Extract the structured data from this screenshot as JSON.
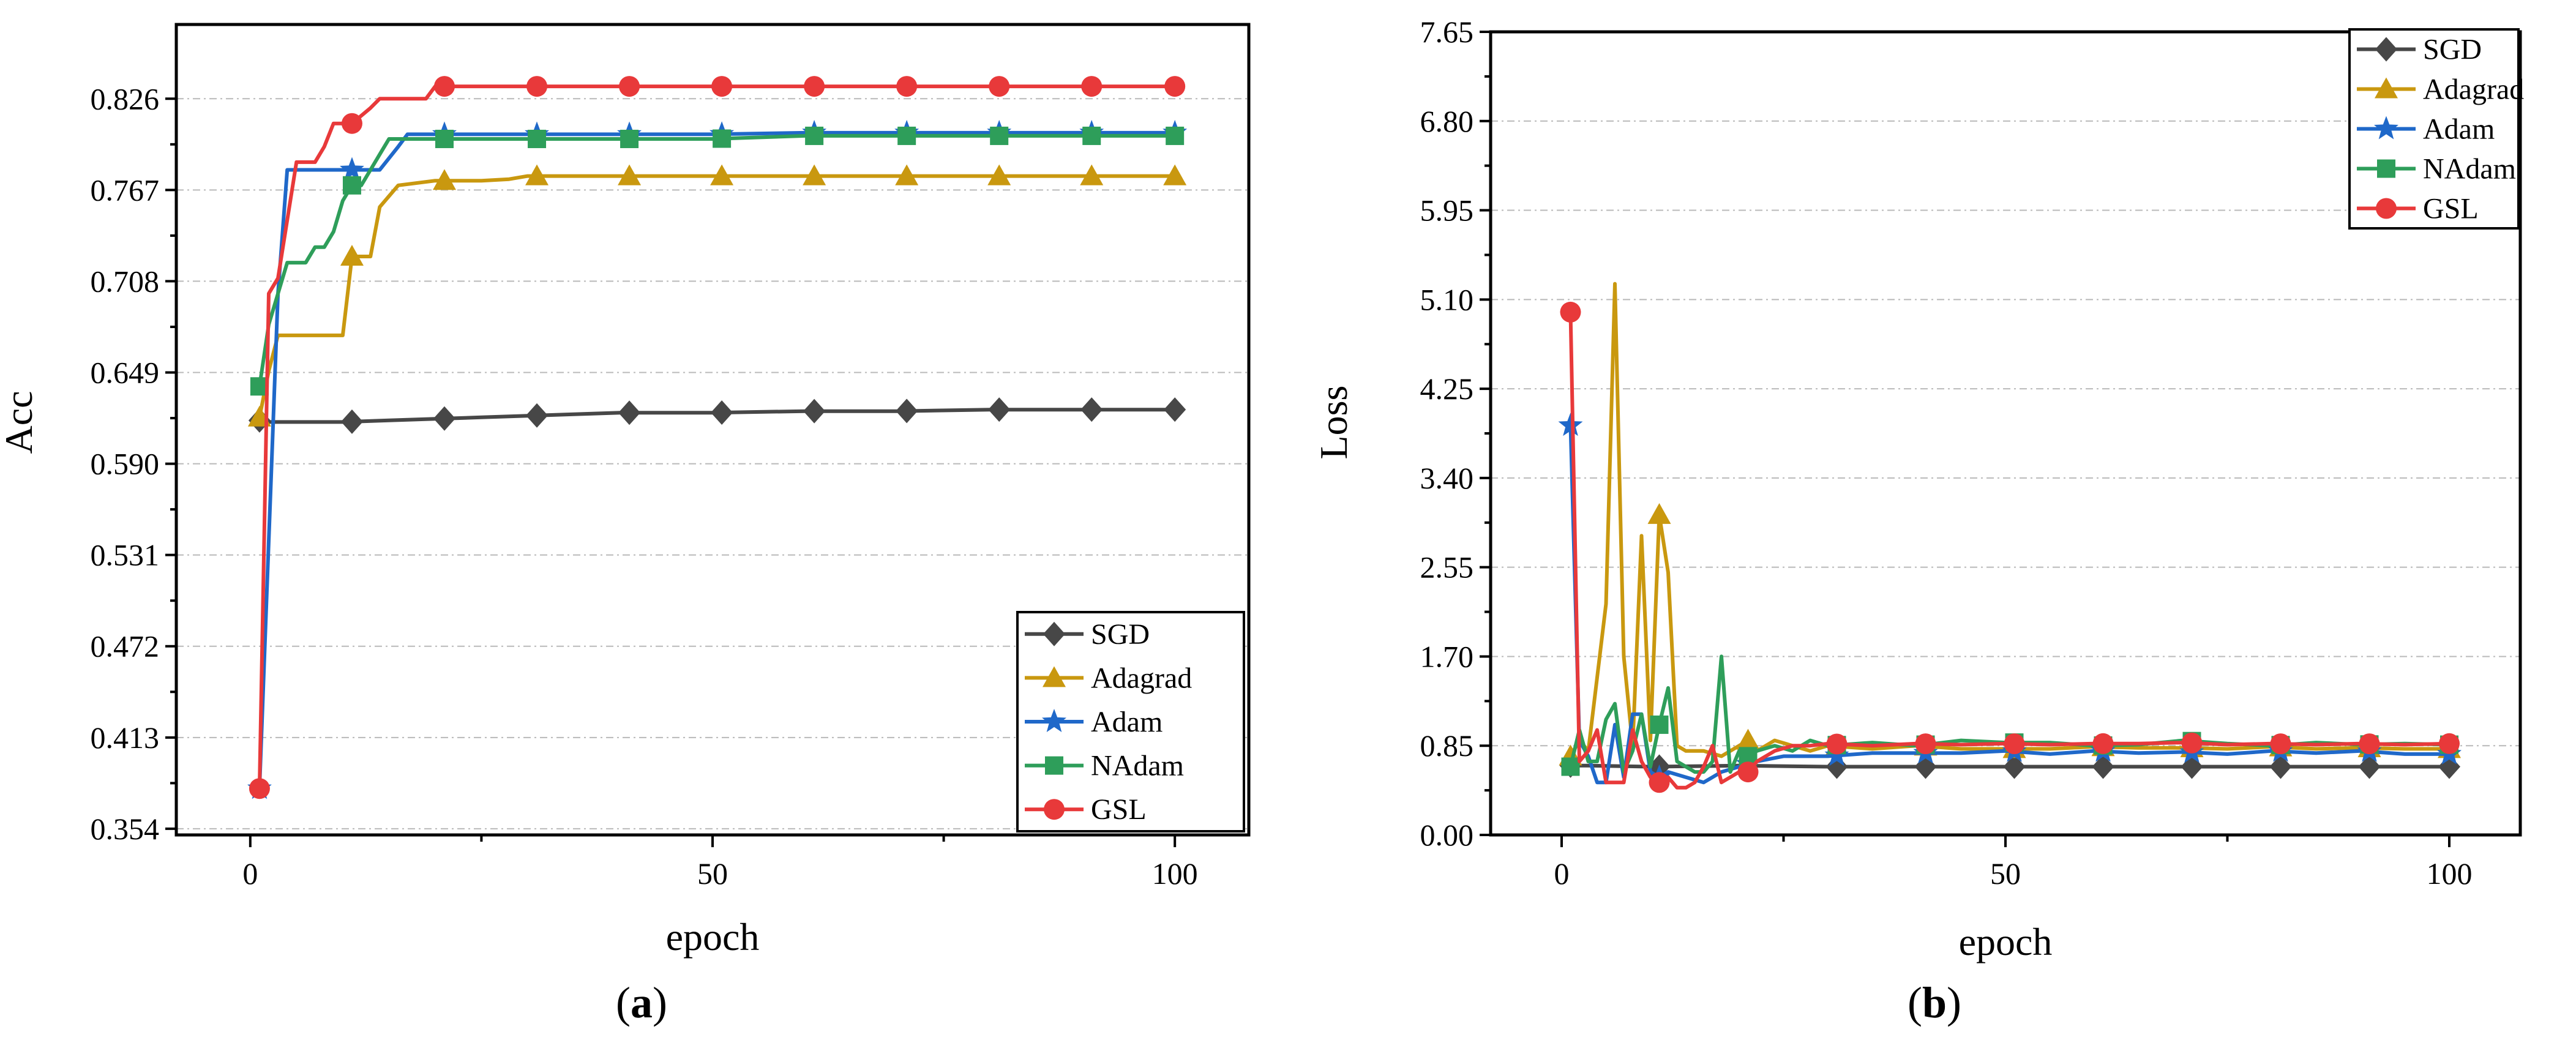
{
  "chart_data": [
    {
      "type": "line",
      "panel_label": "(a)",
      "xlabel": "epoch",
      "ylabel": "Acc",
      "xlim": [
        -8,
        108
      ],
      "ylim": [
        0.35,
        0.874
      ],
      "xticks": [
        0,
        50,
        100
      ],
      "yticks": [
        0.354,
        0.413,
        0.472,
        0.531,
        0.59,
        0.649,
        0.708,
        0.767,
        0.826
      ],
      "ytick_labels": [
        "0.354",
        "0.413",
        "0.472",
        "0.531",
        "0.590",
        "0.649",
        "0.708",
        "0.767",
        "0.826"
      ],
      "legend_position": "bottom-right",
      "series": [
        {
          "name": "SGD",
          "color": "#474747",
          "marker": "diamond",
          "x": [
            1,
            2,
            10,
            15,
            20,
            25,
            30,
            35,
            40,
            50,
            60,
            70,
            80,
            90,
            100
          ],
          "y": [
            0.618,
            0.617,
            0.617,
            0.618,
            0.619,
            0.62,
            0.621,
            0.622,
            0.623,
            0.623,
            0.624,
            0.624,
            0.625,
            0.625,
            0.625
          ],
          "marker_x": [
            1,
            11,
            21,
            31,
            41,
            51,
            61,
            71,
            81,
            91,
            100
          ]
        },
        {
          "name": "Adagrad",
          "color": "#c9980f",
          "marker": "triangle",
          "x": [
            1,
            2,
            3,
            10,
            11,
            13,
            14,
            16,
            20,
            25,
            28,
            30,
            35,
            40,
            50,
            60,
            70,
            80,
            90,
            100
          ],
          "y": [
            0.62,
            0.65,
            0.673,
            0.673,
            0.724,
            0.724,
            0.756,
            0.77,
            0.773,
            0.773,
            0.774,
            0.776,
            0.776,
            0.776,
            0.776,
            0.776,
            0.776,
            0.776,
            0.776,
            0.776
          ],
          "marker_x": [
            1,
            11,
            21,
            31,
            41,
            51,
            61,
            71,
            81,
            91,
            100
          ]
        },
        {
          "name": "Adam",
          "color": "#1f68c9",
          "marker": "star",
          "x": [
            1,
            3,
            4,
            10,
            14,
            16,
            17,
            20,
            30,
            40,
            50,
            60,
            70,
            80,
            90,
            100
          ],
          "y": [
            0.38,
            0.7,
            0.78,
            0.78,
            0.78,
            0.795,
            0.803,
            0.803,
            0.803,
            0.803,
            0.803,
            0.804,
            0.804,
            0.804,
            0.804,
            0.804
          ],
          "marker_x": [
            1,
            11,
            21,
            31,
            41,
            51,
            61,
            71,
            81,
            91,
            100
          ]
        },
        {
          "name": "NAdam",
          "color": "#2e9e5a",
          "marker": "square",
          "x": [
            1,
            2,
            3,
            4,
            5,
            6,
            7,
            8,
            9,
            10,
            11,
            12,
            13,
            14,
            15,
            20,
            30,
            40,
            50,
            60,
            70,
            80,
            90,
            100
          ],
          "y": [
            0.64,
            0.68,
            0.7,
            0.72,
            0.72,
            0.72,
            0.73,
            0.73,
            0.74,
            0.76,
            0.77,
            0.77,
            0.78,
            0.79,
            0.8,
            0.8,
            0.8,
            0.8,
            0.8,
            0.802,
            0.802,
            0.802,
            0.802,
            0.802
          ],
          "marker_x": [
            1,
            11,
            21,
            31,
            41,
            51,
            61,
            71,
            81,
            91,
            100
          ]
        },
        {
          "name": "GSL",
          "color": "#e8393a",
          "marker": "circle",
          "x": [
            1,
            2,
            3,
            5,
            6,
            7,
            8,
            9,
            10,
            11,
            12,
            13,
            14,
            16,
            18,
            19,
            20,
            30,
            40,
            50,
            60,
            70,
            80,
            90,
            100
          ],
          "y": [
            0.38,
            0.7,
            0.71,
            0.785,
            0.785,
            0.785,
            0.795,
            0.81,
            0.81,
            0.81,
            0.815,
            0.82,
            0.826,
            0.826,
            0.826,
            0.826,
            0.834,
            0.834,
            0.834,
            0.834,
            0.834,
            0.834,
            0.834,
            0.834,
            0.834
          ],
          "marker_x": [
            1,
            11,
            21,
            31,
            41,
            51,
            61,
            71,
            81,
            91,
            100
          ]
        }
      ]
    },
    {
      "type": "line",
      "panel_label": "(b)",
      "xlabel": "epoch",
      "ylabel": "Loss",
      "xlim": [
        -8,
        108
      ],
      "ylim": [
        0,
        7.65
      ],
      "xticks": [
        0,
        50,
        100
      ],
      "yticks": [
        0,
        0.85,
        1.7,
        2.55,
        3.4,
        4.25,
        5.1,
        5.95,
        6.8,
        7.65
      ],
      "ytick_labels": [
        "0.00",
        "0.85",
        "1.70",
        "2.55",
        "3.40",
        "4.25",
        "5.10",
        "5.95",
        "6.80",
        "7.65"
      ],
      "legend_position": "top-right",
      "series": [
        {
          "name": "SGD",
          "color": "#474747",
          "marker": "diamond",
          "x": [
            1,
            3,
            10,
            20,
            30,
            40,
            50,
            60,
            70,
            80,
            90,
            100
          ],
          "y": [
            0.66,
            0.66,
            0.65,
            0.66,
            0.65,
            0.65,
            0.65,
            0.65,
            0.65,
            0.65,
            0.65,
            0.65
          ],
          "marker_x": [
            1,
            11,
            21,
            31,
            41,
            51,
            61,
            71,
            81,
            91,
            100
          ]
        },
        {
          "name": "Adagrad",
          "color": "#c9980f",
          "marker": "triangle",
          "x": [
            1,
            2,
            3,
            4,
            5,
            6,
            7,
            8,
            9,
            10,
            11,
            12,
            13,
            14,
            16,
            18,
            20,
            21,
            22,
            24,
            26,
            28,
            30,
            35,
            40,
            45,
            50,
            55,
            60,
            65,
            70,
            75,
            80,
            85,
            90,
            95,
            100
          ],
          "y": [
            0.75,
            0.9,
            0.8,
            1.5,
            2.2,
            5.25,
            1.7,
            0.85,
            2.85,
            0.9,
            3.05,
            2.5,
            0.85,
            0.8,
            0.8,
            0.75,
            0.85,
            0.9,
            0.8,
            0.9,
            0.85,
            0.8,
            0.85,
            0.82,
            0.85,
            0.82,
            0.82,
            0.82,
            0.84,
            0.83,
            0.83,
            0.82,
            0.84,
            0.82,
            0.83,
            0.82,
            0.82
          ],
          "marker_x": [
            1,
            11,
            21,
            31,
            41,
            51,
            61,
            71,
            81,
            91,
            100
          ]
        },
        {
          "name": "Adam",
          "color": "#1f68c9",
          "marker": "star",
          "x": [
            1,
            2,
            3,
            4,
            5,
            6,
            7,
            8,
            9,
            10,
            11,
            12,
            14,
            16,
            18,
            20,
            22,
            25,
            30,
            35,
            40,
            45,
            50,
            55,
            60,
            65,
            70,
            75,
            80,
            85,
            90,
            95,
            100
          ],
          "y": [
            3.9,
            0.9,
            0.75,
            0.5,
            0.5,
            1.05,
            0.55,
            1.15,
            1.15,
            0.6,
            0.55,
            0.6,
            0.55,
            0.5,
            0.6,
            0.65,
            0.7,
            0.75,
            0.75,
            0.78,
            0.78,
            0.78,
            0.8,
            0.77,
            0.8,
            0.78,
            0.79,
            0.77,
            0.8,
            0.78,
            0.8,
            0.77,
            0.77
          ],
          "marker_x": [
            1,
            11,
            21,
            31,
            41,
            51,
            61,
            71,
            81,
            91,
            100
          ]
        },
        {
          "name": "NAdam",
          "color": "#2e9e5a",
          "marker": "square",
          "x": [
            1,
            2,
            3,
            4,
            5,
            6,
            7,
            8,
            9,
            10,
            11,
            12,
            13,
            14,
            15,
            16,
            17,
            18,
            19,
            20,
            21,
            22,
            24,
            26,
            28,
            30,
            35,
            40,
            45,
            50,
            55,
            60,
            65,
            70,
            75,
            80,
            85,
            90,
            95,
            100
          ],
          "y": [
            0.65,
            1.0,
            0.7,
            0.7,
            1.1,
            1.25,
            0.6,
            0.8,
            1.15,
            0.65,
            1.05,
            1.4,
            0.7,
            0.65,
            0.6,
            0.6,
            0.7,
            1.7,
            0.6,
            0.8,
            0.75,
            0.8,
            0.85,
            0.8,
            0.9,
            0.85,
            0.88,
            0.85,
            0.9,
            0.88,
            0.88,
            0.85,
            0.86,
            0.9,
            0.87,
            0.85,
            0.88,
            0.86,
            0.87,
            0.86
          ],
          "marker_x": [
            1,
            11,
            21,
            31,
            41,
            51,
            61,
            71,
            81,
            91,
            100
          ]
        },
        {
          "name": "GSL",
          "color": "#e8393a",
          "marker": "circle",
          "x": [
            1,
            2,
            3,
            4,
            5,
            6,
            7,
            8,
            9,
            10,
            11,
            12,
            13,
            14,
            15,
            16,
            17,
            18,
            19,
            20,
            21,
            22,
            24,
            26,
            28,
            30,
            35,
            40,
            45,
            50,
            55,
            60,
            65,
            70,
            75,
            80,
            85,
            90,
            95,
            100
          ],
          "y": [
            4.98,
            0.7,
            0.8,
            1.0,
            0.5,
            0.5,
            0.5,
            1.0,
            0.7,
            0.55,
            0.5,
            0.55,
            0.45,
            0.45,
            0.5,
            0.65,
            0.85,
            0.5,
            0.55,
            0.6,
            0.6,
            0.7,
            0.8,
            0.85,
            0.85,
            0.87,
            0.85,
            0.87,
            0.86,
            0.87,
            0.86,
            0.87,
            0.87,
            0.88,
            0.86,
            0.87,
            0.86,
            0.87,
            0.86,
            0.87
          ],
          "marker_x": [
            1,
            11,
            21,
            31,
            41,
            51,
            61,
            71,
            81,
            91,
            100
          ]
        }
      ]
    }
  ]
}
